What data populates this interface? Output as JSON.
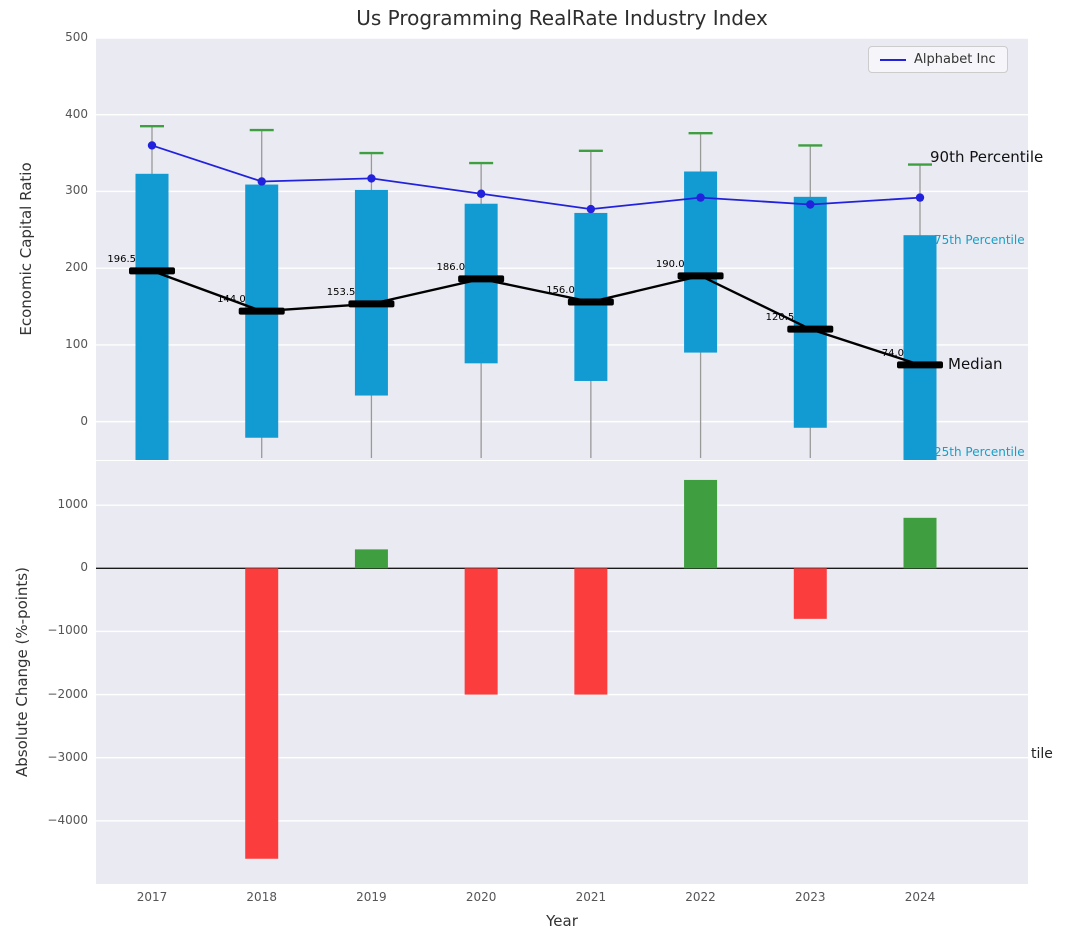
{
  "labels": {
    "title": "Us Programming RealRate Industry Index",
    "ylabel_top": "Economic Capital Ratio",
    "ylabel_bottom": "Absolute Change (%-points)",
    "xlabel": "Year",
    "legend": "Alphabet Inc",
    "ann_p90": "90th Percentile",
    "ann_p75": "75th Percentile",
    "ann_median": "Median",
    "ann_p25": "25th Percentile",
    "ann_clipped_right": "tile"
  },
  "colors": {
    "axes_bg": "#eaeaf2",
    "grid": "#ffffff",
    "box": "#129bd3",
    "whisker": "#999999",
    "cap_green": "#3f9e3f",
    "bar_up": "#3f9e3f",
    "bar_down": "#fb3d3d",
    "line_blue": "#2222dd",
    "median_black": "#000000",
    "annotation_cyan": "#16a0c8",
    "zero_line": "#1a1a1a"
  },
  "chart_data": [
    {
      "type": "line",
      "title": "Us Programming RealRate Industry Index",
      "ylabel": "Economic Capital Ratio",
      "ylim": [
        -50,
        500
      ],
      "yticks": [
        0,
        100,
        200,
        300,
        400,
        500
      ],
      "x": [
        2017,
        2018,
        2019,
        2020,
        2021,
        2022,
        2023,
        2024
      ],
      "legend_position": "upper right",
      "grid": true,
      "series": [
        {
          "name": "Alphabet Inc",
          "type": "line",
          "color": "#2222dd",
          "marker": "circle",
          "values": [
            360,
            313,
            317,
            297,
            277,
            292,
            283,
            292
          ]
        },
        {
          "name": "Median",
          "type": "line",
          "color": "#000000",
          "marker": "thick-dash",
          "values": [
            196.5,
            144.0,
            153.5,
            186.0,
            156.0,
            190.0,
            120.5,
            74.0
          ]
        }
      ],
      "median_labels": [
        "196.5",
        "144.0",
        "153.5",
        "186.0",
        "156.0",
        "190.0",
        "120.5",
        "74.0"
      ],
      "percentiles": {
        "p90": [
          385,
          380,
          350,
          337,
          353,
          376,
          360,
          335
        ],
        "p75": [
          323,
          309,
          302,
          284,
          272,
          326,
          293,
          243
        ],
        "p25": [
          -50,
          -21,
          34,
          76,
          53,
          90,
          -8,
          -50
        ]
      },
      "annotations": [
        "90th Percentile",
        "75th Percentile",
        "Median",
        "25th Percentile"
      ]
    },
    {
      "type": "bar",
      "ylabel": "Absolute Change (%-points)",
      "xlabel": "Year",
      "ylim": [
        -5000,
        1700
      ],
      "yticks": [
        1000,
        0,
        -1000,
        -2000,
        -3000,
        -4000
      ],
      "grid": true,
      "categories": [
        2017,
        2018,
        2019,
        2020,
        2021,
        2022,
        2023,
        2024
      ],
      "values": [
        0,
        -4600,
        300,
        -2000,
        -2000,
        1400,
        -800,
        800
      ],
      "positive_color": "#3f9e3f",
      "negative_color": "#fb3d3d"
    }
  ]
}
